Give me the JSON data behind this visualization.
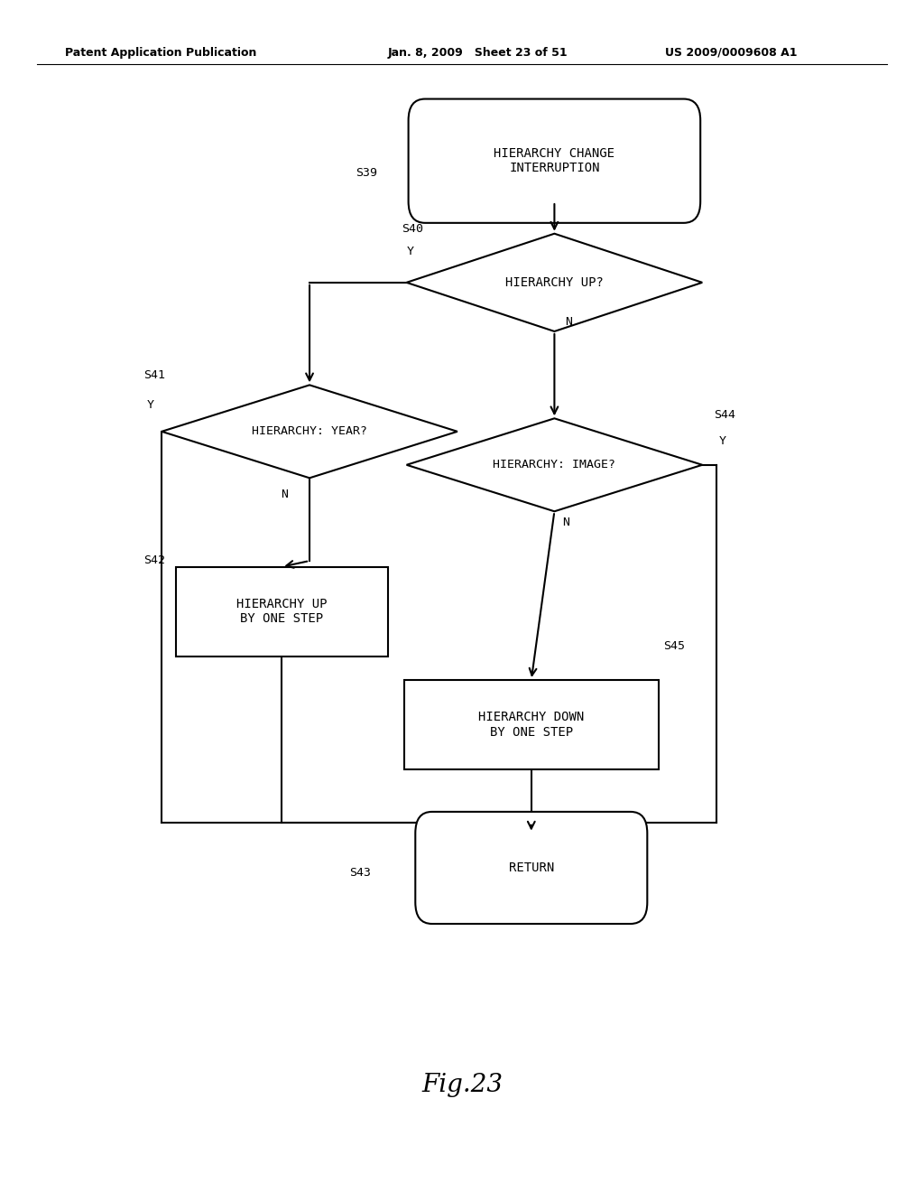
{
  "bg_color": "#ffffff",
  "line_color": "#000000",
  "header_left": "Patent Application Publication",
  "header_mid": "Jan. 8, 2009   Sheet 23 of 51",
  "header_right": "US 2009/0009608 A1",
  "fig_label": "Fig.23"
}
